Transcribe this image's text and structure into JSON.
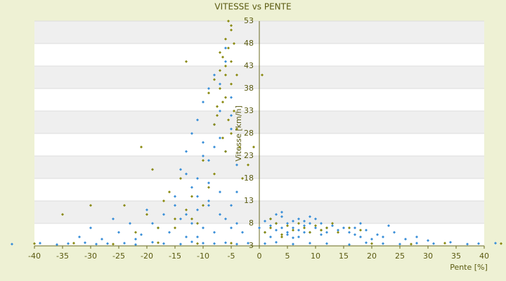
{
  "chart_data": {
    "type": "scatter",
    "title": "VITESSE vs PENTE",
    "x_label": "Pente [%]",
    "y_label": "Vitesse [km/h]",
    "xlim": [
      -40,
      40
    ],
    "xticks": [
      -40,
      -35,
      -30,
      -25,
      -20,
      -15,
      -10,
      -5,
      0,
      5,
      10,
      15,
      20,
      25,
      30,
      35,
      40
    ],
    "ylim": [
      3,
      53
    ],
    "yticks": [
      3,
      8,
      13,
      18,
      23,
      28,
      33,
      38,
      43,
      48,
      53
    ],
    "grid": true,
    "series": [
      {
        "color": "#3a8fd8",
        "x": [
          -44,
          -39,
          -36,
          -34,
          -31,
          -29,
          -27,
          -24,
          -22,
          -19,
          -17,
          -14,
          -12,
          -10,
          -8,
          -6,
          -4,
          -2,
          1,
          3,
          6,
          9,
          12,
          16,
          19,
          22,
          25,
          28,
          31,
          34,
          37,
          39,
          42,
          -32,
          -30,
          -28,
          -26,
          -25,
          -23,
          -21,
          -20,
          -18,
          -17,
          -16,
          -15,
          -14,
          -13,
          -12,
          -11,
          -10,
          -9,
          -8,
          -7,
          -6,
          -5,
          -4,
          -3,
          -22,
          -19,
          -15,
          -13,
          -11,
          -9,
          -7,
          -5,
          -14,
          -13,
          -12,
          -11,
          -11,
          -10,
          -10,
          -9,
          -9,
          -8,
          -8,
          -7,
          -7,
          -6,
          -6,
          -5,
          -5,
          -4,
          -12,
          -9,
          -7,
          -5,
          -13,
          -8,
          -6,
          -10,
          -11,
          -4,
          0,
          1,
          1,
          2,
          2,
          3,
          3,
          4,
          4,
          5,
          5,
          6,
          6,
          7,
          7,
          8,
          8,
          9,
          9,
          10,
          10,
          11,
          11,
          12,
          12,
          13,
          14,
          15,
          3,
          5,
          7,
          9,
          11,
          2,
          4,
          6,
          8,
          16,
          17,
          18,
          19,
          20,
          21,
          22,
          24,
          26,
          28,
          30,
          23,
          18,
          17
        ],
        "values": [
          3.4,
          3.6,
          3.3,
          3.5,
          3.7,
          3.4,
          3.5,
          3.6,
          3.3,
          3.8,
          3.5,
          3.4,
          3.9,
          3.6,
          3.5,
          3.7,
          3.4,
          3.6,
          3.5,
          3.8,
          3.4,
          3.6,
          3.5,
          3.3,
          3.7,
          3.5,
          3.4,
          3.6,
          3.5,
          3.8,
          3.4,
          3.5,
          3.6,
          5,
          7,
          4.5,
          9,
          6,
          8,
          5.5,
          11,
          7,
          10,
          6,
          12,
          9,
          5,
          8,
          11,
          7,
          13,
          6,
          10,
          9,
          12,
          8,
          6,
          4.5,
          8,
          14,
          10,
          5,
          12,
          15,
          7,
          20,
          24,
          28,
          18,
          31,
          26,
          35,
          22,
          38,
          30,
          41,
          27,
          33,
          24,
          44,
          29,
          36,
          21,
          16,
          17,
          39,
          32,
          19,
          25,
          47,
          23,
          14,
          15,
          7,
          8.5,
          6,
          9,
          7.5,
          6.5,
          8,
          9.5,
          7,
          8,
          6,
          8.5,
          7,
          9,
          6.5,
          7.5,
          8.5,
          6,
          8,
          7,
          9,
          6.5,
          8,
          7,
          6,
          7.5,
          6.5,
          7,
          10,
          5.5,
          5,
          9.5,
          5.5,
          5,
          10.5,
          4.8,
          6,
          6,
          7,
          5,
          6.5,
          4.5,
          5.5,
          5,
          6,
          4.5,
          5,
          4.2,
          7.5,
          8,
          5.5
        ]
      },
      {
        "color": "#8a8a10",
        "x": [
          -8,
          -7.5,
          -7,
          -7,
          -6.5,
          -6.5,
          -6,
          -6,
          -6,
          -5.5,
          -5.5,
          -5,
          -5,
          -5,
          -4.5,
          -4.5,
          -4,
          -7,
          -6,
          -5,
          -8,
          -9,
          -5.5,
          -6.5,
          -4,
          -3.5,
          -7.5,
          -5,
          -6,
          -13,
          -24,
          -20,
          -18,
          -16,
          -15,
          -14,
          -13,
          -12,
          -11,
          -10,
          -9,
          -8,
          -30,
          -35,
          -22,
          -17,
          -3,
          -2,
          -1,
          -10,
          -12,
          -15,
          -21,
          -19,
          1,
          2,
          3,
          4,
          5,
          6,
          7,
          8,
          9,
          10,
          11,
          12,
          13,
          14,
          16,
          18,
          2,
          4,
          -40,
          -33,
          -26,
          -18,
          -11,
          -5,
          20,
          27,
          33,
          43,
          0.5
        ],
        "values": [
          30,
          34,
          38,
          42,
          45,
          27,
          49,
          36,
          41,
          53,
          47,
          44,
          39,
          51,
          33,
          48,
          29,
          46,
          43,
          52,
          40,
          37,
          31,
          35,
          41,
          25,
          32,
          28,
          24,
          44,
          12,
          10,
          7,
          15,
          9,
          18,
          11,
          14,
          8,
          22,
          16,
          19,
          12,
          10,
          6,
          13,
          18,
          21,
          25,
          12,
          9,
          7,
          25,
          20,
          6,
          7,
          8,
          5.5,
          7.5,
          6.5,
          8,
          7,
          6,
          7.5,
          6.5,
          7,
          8,
          6,
          7,
          6.5,
          9,
          5,
          3.5,
          3.6,
          3.4,
          3.7,
          3.5,
          3.6,
          3.5,
          3.4,
          3.6,
          3.5,
          41
        ]
      }
    ]
  }
}
